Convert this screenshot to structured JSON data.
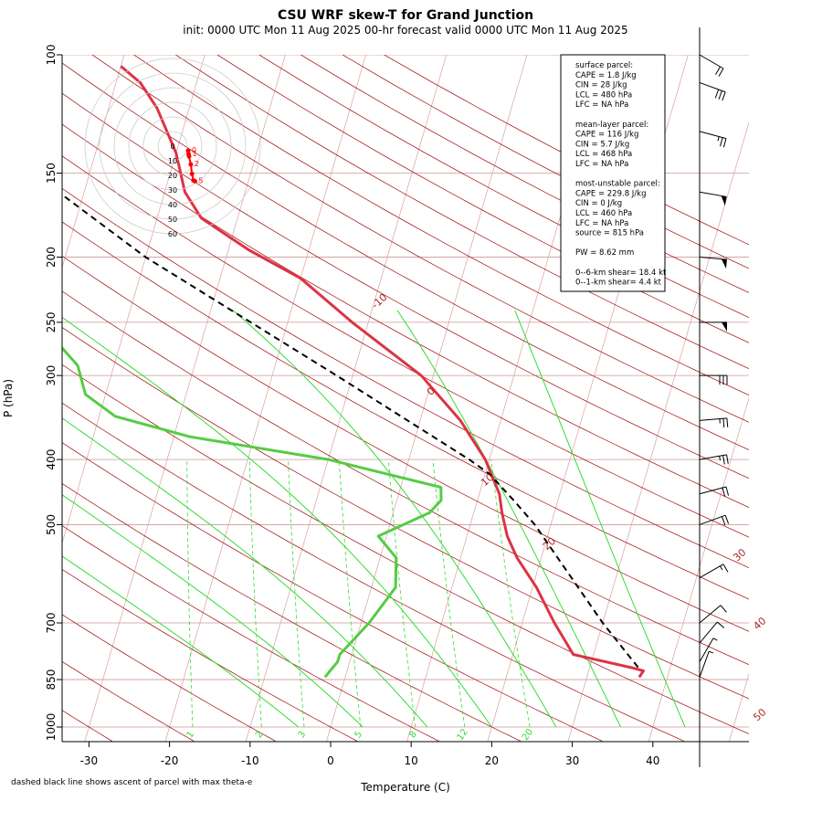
{
  "title": "CSU WRF skew-T for Grand Junction",
  "subtitle": "init: 0000 UTC Mon 11 Aug 2025    00-hr forecast valid 0000 UTC Mon 11 Aug 2025",
  "xlabel": "Temperature (C)",
  "ylabel": "P (hPa)",
  "footnote": "dashed black line shows ascent of parcel with max theta-e",
  "colors": {
    "temperature": "#dd3344",
    "dewpoint": "#55cc44",
    "parcel": "#000000",
    "isotherm_grid": "#d9a0a0",
    "dry_adiabat": "#aa2222",
    "moist_adiabat": "#33dd33",
    "mixing_ratio": "#33dd33",
    "isotherm_label": "#aa2222",
    "hodograph": "#ff0000"
  },
  "info_box": [
    "surface parcel:",
    "CAPE = 1.8 J/kg",
    "CIN = 28 J/kg",
    "LCL = 480 hPa",
    "LFC = NA hPa",
    "",
    "mean-layer parcel:",
    "CAPE = 116 J/kg",
    "CIN = 5.7 J/kg",
    "LCL = 468 hPa",
    "LFC = NA hPa",
    "",
    "most-unstable parcel:",
    "CAPE = 229.8 J/kg",
    "CIN = 0 J/kg",
    "LCL = 460 hPa",
    "LFC = NA hPa",
    "source = 815 hPa",
    "",
    "PW =  8.62 mm",
    "",
    "0--6-km shear= 18.4 kt",
    "0--1-km shear= 4.4 kt"
  ],
  "chart_data": {
    "type": "line",
    "diagram": "skew-T log-p",
    "x_ticks": [
      -30,
      -20,
      -10,
      0,
      10,
      20,
      30,
      40
    ],
    "x_range": [
      -30,
      45
    ],
    "y_ticks": [
      100,
      150,
      200,
      250,
      300,
      400,
      500,
      700,
      850,
      1000
    ],
    "y_range": [
      1000,
      100
    ],
    "y_scale": "log",
    "isotherm_labels": [
      -10,
      0,
      10,
      20,
      30,
      40,
      50
    ],
    "mixing_ratio_labels": [
      "1",
      "2",
      "3",
      "5",
      "8",
      "12",
      "20"
    ],
    "series": [
      {
        "key": "temperature",
        "points": [
          [
            843,
            36.5
          ],
          [
            825,
            36.8
          ],
          [
            815,
            35.0
          ],
          [
            780,
            27.5
          ],
          [
            700,
            24.0
          ],
          [
            620,
            20.5
          ],
          [
            560,
            17.0
          ],
          [
            520,
            15.0
          ],
          [
            480,
            13.5
          ],
          [
            450,
            12.5
          ],
          [
            400,
            9.5
          ],
          [
            350,
            5.0
          ],
          [
            300,
            -1.5
          ],
          [
            250,
            -12.0
          ],
          [
            215,
            -20.0
          ],
          [
            195,
            -27.5
          ],
          [
            175,
            -34.5
          ],
          [
            160,
            -37.5
          ],
          [
            140,
            -40.0
          ],
          [
            120,
            -44.0
          ],
          [
            110,
            -47.0
          ],
          [
            104,
            -50.0
          ]
        ]
      },
      {
        "key": "dewpoint",
        "points": [
          [
            843,
            -2.5
          ],
          [
            820,
            -2.0
          ],
          [
            800,
            -1.5
          ],
          [
            780,
            -1.5
          ],
          [
            700,
            1.0
          ],
          [
            620,
            3.0
          ],
          [
            560,
            2.0
          ],
          [
            520,
            -1.0
          ],
          [
            480,
            4.5
          ],
          [
            460,
            5.5
          ],
          [
            440,
            5.0
          ],
          [
            400,
            -10.0
          ],
          [
            370,
            -28.0
          ],
          [
            345,
            -38.0
          ],
          [
            320,
            -42.5
          ],
          [
            290,
            -44.5
          ],
          [
            255,
            -50.0
          ],
          [
            220,
            -57.5
          ],
          [
            200,
            -62.0
          ],
          [
            178,
            -70.0
          ]
        ]
      },
      {
        "key": "parcel",
        "points": [
          [
            815,
            36.0
          ],
          [
            700,
            30.0
          ],
          [
            600,
            24.5
          ],
          [
            500,
            18.0
          ],
          [
            460,
            14.5
          ],
          [
            420,
            10.5
          ],
          [
            400,
            7.5
          ],
          [
            300,
            -12.0
          ],
          [
            200,
            -40.0
          ],
          [
            150,
            -57.0
          ],
          [
            105,
            -84.0
          ]
        ]
      }
    ],
    "hodograph": {
      "ring_labels": [
        "0",
        "10",
        "20",
        "30",
        "40",
        "50",
        "60"
      ],
      "point_labels": [
        "0",
        "1",
        "2",
        "5"
      ],
      "points": [
        [
          -0.6,
          3.1
        ],
        [
          -0.3,
          5.5
        ],
        [
          0.0,
          7.0
        ],
        [
          1.2,
          12.5
        ],
        [
          2.0,
          19.0
        ],
        [
          3.0,
          23.5
        ],
        [
          4.0,
          24.0
        ]
      ]
    },
    "wind_barbs": {
      "note": "wind barbs along right edge, pressure vs speed (kt) and direction (deg from)",
      "points": [
        [
          843,
          5,
          200
        ],
        [
          800,
          5,
          210
        ],
        [
          750,
          10,
          220
        ],
        [
          700,
          10,
          230
        ],
        [
          600,
          15,
          240
        ],
        [
          500,
          20,
          250
        ],
        [
          450,
          20,
          255
        ],
        [
          400,
          25,
          260
        ],
        [
          350,
          25,
          265
        ],
        [
          300,
          30,
          270
        ],
        [
          250,
          50,
          270
        ],
        [
          200,
          50,
          275
        ],
        [
          160,
          50,
          280
        ],
        [
          130,
          25,
          285
        ],
        [
          110,
          30,
          290
        ],
        [
          100,
          20,
          300
        ]
      ]
    }
  }
}
